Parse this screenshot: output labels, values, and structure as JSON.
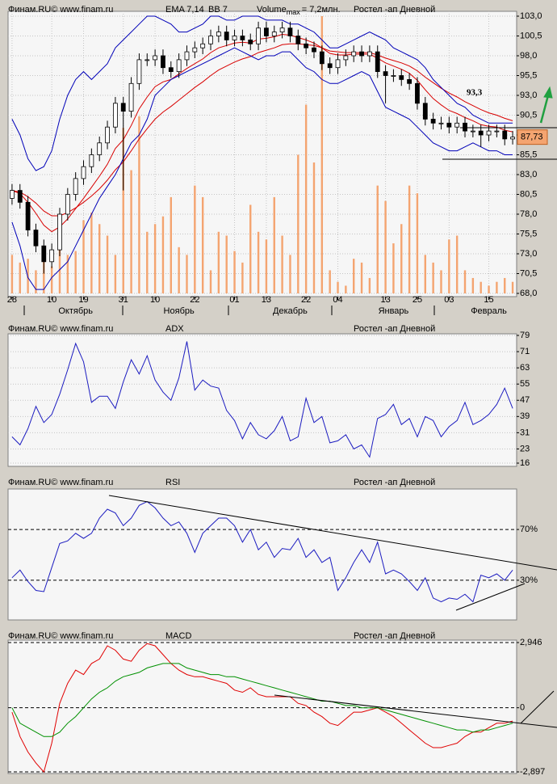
{
  "chart_data": [
    {
      "type": "candlestick",
      "source": "Финам.RU©  www.finam.ru",
      "instrument": "Ростел -ап Дневной",
      "categories": [
        "28",
        null,
        null,
        null,
        null,
        "10",
        null,
        null,
        null,
        "19",
        null,
        null,
        null,
        null,
        "31",
        null,
        null,
        null,
        "10",
        null,
        null,
        null,
        null,
        "22",
        null,
        null,
        null,
        null,
        "01",
        null,
        null,
        null,
        "13",
        null,
        null,
        null,
        null,
        "22",
        null,
        null,
        null,
        "04",
        null,
        null,
        null,
        null,
        null,
        "13",
        null,
        null,
        null,
        "25",
        null,
        null,
        null,
        "03",
        null,
        null,
        null,
        null,
        "15",
        null,
        null,
        null
      ],
      "months": [
        null,
        null,
        null,
        null,
        null,
        null,
        null,
        null,
        "Октябрь",
        null,
        null,
        null,
        null,
        null,
        null,
        null,
        null,
        null,
        null,
        null,
        null,
        "Ноябрь",
        null,
        null,
        null,
        null,
        null,
        null,
        null,
        null,
        null,
        null,
        null,
        null,
        null,
        "Декабрь",
        null,
        null,
        null,
        null,
        null,
        null,
        null,
        null,
        null,
        null,
        null,
        null,
        "Январь",
        null,
        null,
        null,
        null,
        null,
        null,
        null,
        null,
        null,
        null,
        null,
        "Февраль",
        null,
        null,
        null
      ],
      "ylim": [
        68,
        103
      ],
      "yticks": [
        {
          "value": 103,
          "label": "103,0"
        },
        {
          "value": 100.5,
          "label": "100,5"
        },
        {
          "value": 98,
          "label": "98,0"
        },
        {
          "value": 95.5,
          "label": "95,5"
        },
        {
          "value": 93,
          "label": "93,0"
        },
        {
          "value": 90.5,
          "label": "90,5"
        },
        {
          "value": 88,
          "label": "88,0"
        },
        {
          "value": 85.5,
          "label": "85,5"
        },
        {
          "value": 83,
          "label": "83,0"
        },
        {
          "value": 80.5,
          "label": "80,5"
        },
        {
          "value": 78,
          "label": "78,0"
        },
        {
          "value": 75.5,
          "label": "75,5"
        },
        {
          "value": 73,
          "label": "73,0"
        },
        {
          "value": 70.5,
          "label": "70,5"
        },
        {
          "value": 68,
          "label": "68,0"
        }
      ],
      "grid": true,
      "up_color": "#ffffff",
      "down_color": "#000000",
      "open": [
        80,
        81,
        79.5,
        76,
        74,
        72,
        73.5,
        78,
        80.5,
        82.5,
        84,
        85.5,
        87,
        89,
        92,
        91,
        94.5,
        97.5,
        97.5,
        98,
        96.5,
        96,
        97.5,
        98.5,
        99,
        99.5,
        100.5,
        101,
        100,
        100.5,
        100,
        99.5,
        101.5,
        100.5,
        101,
        101.5,
        100.5,
        99.5,
        99,
        98.5,
        97,
        96.5,
        97.5,
        98,
        98.5,
        98,
        98.5,
        96,
        95.5,
        95.5,
        95,
        94.5,
        92,
        90,
        89.5,
        89.5,
        89,
        89.5,
        88.5,
        88.5,
        88,
        88.5,
        88.5,
        87.5
      ],
      "high": [
        81.8,
        81.8,
        80.3,
        76.8,
        74.8,
        74.3,
        78.8,
        81.3,
        83.3,
        84.8,
        86.3,
        87.8,
        89.8,
        92.8,
        92.8,
        95.3,
        98.3,
        98.3,
        98.8,
        98.8,
        97.3,
        98.3,
        99.3,
        99.8,
        100.3,
        101.3,
        101.8,
        101.8,
        101.3,
        101.3,
        100.8,
        102.3,
        102.3,
        101.8,
        102.3,
        102.3,
        101.3,
        100.3,
        99.8,
        99.3,
        97.8,
        98.3,
        98.8,
        99.3,
        99.3,
        99.3,
        99.3,
        96.8,
        96.3,
        96.3,
        95.8,
        95.3,
        92.8,
        90.8,
        90.3,
        90.3,
        90.3,
        90.3,
        89.3,
        89.3,
        89.3,
        89.3,
        89.3,
        88.5
      ],
      "low": [
        79.2,
        78.7,
        75.2,
        73.2,
        70.5,
        71.2,
        72.7,
        77.2,
        79.7,
        81.7,
        83.2,
        84.7,
        86.2,
        88.2,
        81,
        90.2,
        93.7,
        96.7,
        96.7,
        95.7,
        95.2,
        95.2,
        96.7,
        97.7,
        98.2,
        98.7,
        99.7,
        99.2,
        99.2,
        99.2,
        98.7,
        98.7,
        99.7,
        99.7,
        100.2,
        99.7,
        98.7,
        98.2,
        97.7,
        96.2,
        95.7,
        95.7,
        96.7,
        97.2,
        97.2,
        97.2,
        95.2,
        92,
        94.7,
        94.2,
        93.7,
        91.2,
        89.2,
        88.7,
        88.7,
        88.2,
        88.2,
        87.7,
        87.7,
        86.5,
        87.2,
        87.7,
        86.7,
        86.8
      ],
      "close": [
        81,
        79.5,
        76,
        74,
        72,
        73.5,
        78,
        80.5,
        82.5,
        84,
        85.5,
        87,
        89,
        92,
        91,
        94.5,
        97.5,
        97.5,
        98,
        96.5,
        96,
        97.5,
        98.5,
        99,
        99.5,
        100.5,
        101,
        100,
        100.5,
        100,
        99.5,
        101.5,
        100.5,
        101,
        101.5,
        100.5,
        99.5,
        99,
        98.5,
        97,
        96.5,
        97.5,
        98,
        98.5,
        98,
        98.5,
        96,
        95.5,
        95.5,
        95,
        94.5,
        92,
        90,
        89.5,
        89.5,
        89,
        89.5,
        88.5,
        88.5,
        88,
        88.5,
        88.5,
        87.5,
        87.73
      ],
      "overlays": [
        {
          "name": "EMA 7,14",
          "color": "#d80000",
          "lines": [
            [
              81,
              80.6,
              79.5,
              78.1,
              76.6,
              75.8,
              76.4,
              77.4,
              78.7,
              80,
              81.4,
              82.8,
              84.3,
              86.3,
              87.4,
              89.2,
              91.3,
              92.8,
              94.1,
              94.7,
              95,
              95.7,
              96.4,
              97,
              97.6,
              98.4,
              99,
              99.3,
              99.6,
              99.7,
              99.6,
              100.1,
              100.2,
              100.4,
              100.7,
              100.6,
              100.3,
              100,
              99.6,
              99,
              98.3,
              98.1,
              98.1,
              98.2,
              98.2,
              98.2,
              97.7,
              97.1,
              96.7,
              96.3,
              95.8,
              94.9,
              93.7,
              92.6,
              91.8,
              91.1,
              90.7,
              90.2,
              89.8,
              89.3,
              89.1,
              89,
              88.6,
              88.4
            ],
            [
              81,
              80.8,
              80.2,
              79.4,
              78.4,
              77.8,
              77.8,
              78.2,
              78.8,
              79.5,
              80.3,
              81.2,
              82.3,
              83.6,
              84.6,
              86,
              87.5,
              88.8,
              90,
              90.9,
              91.6,
              92.4,
              93.2,
              94,
              94.7,
              95.5,
              96.2,
              96.7,
              97.2,
              97.6,
              97.9,
              98.4,
              98.7,
              99,
              99.4,
              99.5,
              99.5,
              99.4,
              99.3,
              99,
              98.6,
              98.5,
              98.4,
              98.4,
              98.4,
              98.4,
              98.1,
              97.7,
              97.4,
              97.1,
              96.7,
              96.1,
              95.3,
              94.6,
              93.9,
              93.3,
              92.8,
              92.2,
              91.7,
              91.2,
              90.8,
              90.5,
              90.1,
              89.8
            ]
          ]
        },
        {
          "name": "BB 7",
          "color": "#0000b8",
          "lines": [
            [
              90,
              88,
              85,
              83.5,
              84,
              86,
              90,
              93,
              95,
              96,
              95,
              96,
              97,
              99,
              100,
              101,
              102,
              103,
              103,
              102.5,
              102,
              101,
              101,
              101.5,
              102,
              103,
              103,
              102.5,
              102.5,
              103,
              103,
              103,
              102.5,
              102.5,
              102.5,
              102,
              102,
              101.5,
              101,
              100,
              99,
              99,
              99.5,
              100,
              100.5,
              101,
              100.5,
              100,
              99,
              98.5,
              98,
              97.5,
              96.5,
              95,
              94,
              93,
              92,
              91.5,
              90.5,
              90,
              89.5,
              89.5,
              89.5,
              89.5
            ],
            [
              77,
              74,
              70,
              68.5,
              68.5,
              70,
              71,
              72,
              74,
              76,
              78,
              80,
              81.5,
              83,
              85,
              87,
              88,
              90,
              93,
              94,
              95,
              95.5,
              96,
              96.5,
              97,
              97.5,
              98,
              98.5,
              99,
              98.5,
              98,
              97.5,
              98,
              98,
              98.5,
              98.5,
              97.5,
              96.5,
              96,
              95,
              94.5,
              94.5,
              95,
              95.5,
              96,
              95.5,
              93.5,
              91.5,
              91,
              90.5,
              90,
              89,
              88,
              87,
              86.5,
              86,
              86,
              86.5,
              87,
              86.5,
              86,
              86,
              85.5,
              85.5
            ]
          ]
        }
      ],
      "volume": {
        "label": "Volume",
        "sub": "max",
        "max": {
          "value": 7.2,
          "label": "= 7,2млн."
        },
        "color": "#f4a470",
        "values": [
          1,
          0.8,
          0.9,
          0.6,
          1.2,
          0.7,
          1.2,
          1,
          1.1,
          1.9,
          2.1,
          1.8,
          1.5,
          1,
          4.3,
          3.2,
          4.6,
          1.6,
          1.8,
          2,
          2.5,
          1.2,
          1,
          2.8,
          2.5,
          0.6,
          1.6,
          1.5,
          1.1,
          0.8,
          2.3,
          1.6,
          1.4,
          2.5,
          1.5,
          1,
          3.6,
          4.9,
          3.4,
          7.2,
          0.6,
          0.3,
          0.2,
          0.9,
          0.8,
          0.4,
          2.8,
          2.4,
          1.3,
          1.8,
          2.8,
          2.6,
          1,
          0.8,
          0.6,
          1.4,
          1.5,
          0.6,
          0.4,
          0.3,
          0.2,
          0.3,
          0.4,
          0.3
        ]
      },
      "annotation": {
        "text": "93,3",
        "value": 93.3,
        "color": "#20a040"
      },
      "last_price": {
        "value": 87.73,
        "label": "87,73"
      }
    },
    {
      "type": "line",
      "source": "Финам.RU©  www.finam.ru",
      "title": "ADX",
      "instrument": "Ростел -ап Дневной",
      "ylim": [
        16,
        79
      ],
      "yticks": [
        79,
        71,
        63,
        55,
        47,
        39,
        31,
        23,
        16
      ],
      "grid": "dotted",
      "series": [
        {
          "color": "#1c1cc0",
          "values": [
            29,
            25,
            33,
            44,
            36,
            40,
            50,
            62,
            75,
            66,
            46,
            49,
            49,
            43,
            56,
            67,
            60,
            69,
            57,
            51,
            47,
            58,
            76,
            52,
            57,
            54,
            53,
            42,
            37,
            28,
            36,
            30,
            28,
            32,
            39,
            27,
            29,
            48,
            36,
            39,
            26,
            27,
            30,
            23,
            25,
            19,
            38,
            40,
            45,
            35,
            38,
            29,
            39,
            37,
            29,
            34,
            37,
            46,
            35,
            37,
            40,
            45,
            53,
            43
          ]
        }
      ]
    },
    {
      "type": "line",
      "source": "Финам.RU©  www.finam.ru",
      "title": "RSI",
      "instrument": "Ростел -ап Дневной",
      "ylim": [
        0,
        100
      ],
      "yticks": [
        {
          "value": 70,
          "label": "70%"
        },
        {
          "value": 30,
          "label": "30%"
        }
      ],
      "grid": "dashed",
      "series": [
        {
          "color": "#1c1cc0",
          "values": [
            32,
            38,
            29,
            22,
            21,
            40,
            59,
            61,
            67,
            63,
            67,
            79,
            86,
            83,
            73,
            79,
            89,
            92,
            87,
            79,
            73,
            76,
            67,
            52,
            67,
            73,
            79,
            79,
            73,
            60,
            70,
            54,
            60,
            48,
            55,
            54,
            63,
            48,
            54,
            44,
            48,
            22,
            32,
            44,
            54,
            44,
            60,
            35,
            38,
            35,
            29,
            22,
            32,
            16,
            13,
            16,
            15,
            19,
            13,
            34,
            32,
            35,
            30,
            38
          ]
        }
      ]
    },
    {
      "type": "line",
      "source": "Финам.RU©  www.finam.ru",
      "title": "MACD",
      "instrument": "Ростел -ап Дневной",
      "ylim": [
        -2.897,
        2.946
      ],
      "yticks": [
        {
          "value": 2.946,
          "label": "2,946"
        },
        0,
        {
          "value": -2.897,
          "label": "-2,897"
        }
      ],
      "grid": "dashed",
      "series": [
        {
          "color": "#e00000",
          "values": [
            -0.2,
            -1.3,
            -2,
            -2.5,
            -2.9,
            -1.6,
            0.2,
            1.1,
            1.7,
            1.5,
            2,
            2.2,
            2.8,
            2.6,
            2.2,
            2.1,
            2.6,
            2.9,
            2.8,
            2.4,
            2,
            1.7,
            1.5,
            1.4,
            1.4,
            1.3,
            1.2,
            1.1,
            0.8,
            0.7,
            0.9,
            0.6,
            0.5,
            0.5,
            0.5,
            0.5,
            0.2,
            0.1,
            -0.2,
            -0.4,
            -0.7,
            -0.8,
            -0.5,
            -0.2,
            -0.2,
            -0.1,
            0,
            -0.2,
            -0.4,
            -0.7,
            -1,
            -1.3,
            -1.6,
            -1.8,
            -1.8,
            -1.7,
            -1.6,
            -1.3,
            -1.1,
            -1.1,
            -0.9,
            -0.7,
            -0.7,
            -0.6
          ]
        },
        {
          "color": "#009000",
          "values": [
            0,
            -0.7,
            -0.9,
            -1.1,
            -1.3,
            -1.3,
            -1.1,
            -0.7,
            -0.4,
            0,
            0.4,
            0.7,
            0.9,
            1.2,
            1.4,
            1.5,
            1.6,
            1.8,
            1.9,
            2,
            2,
            2,
            1.8,
            1.7,
            1.6,
            1.5,
            1.5,
            1.4,
            1.4,
            1.3,
            1.2,
            1.1,
            1,
            0.9,
            0.8,
            0.7,
            0.6,
            0.5,
            0.4,
            0.3,
            0.3,
            0.2,
            0.1,
            0.1,
            0,
            0,
            0,
            -0.1,
            -0.2,
            -0.3,
            -0.4,
            -0.5,
            -0.6,
            -0.7,
            -0.8,
            -0.9,
            -1,
            -1,
            -1.1,
            -1,
            -1,
            -0.9,
            -0.8,
            -0.7
          ]
        }
      ]
    }
  ]
}
